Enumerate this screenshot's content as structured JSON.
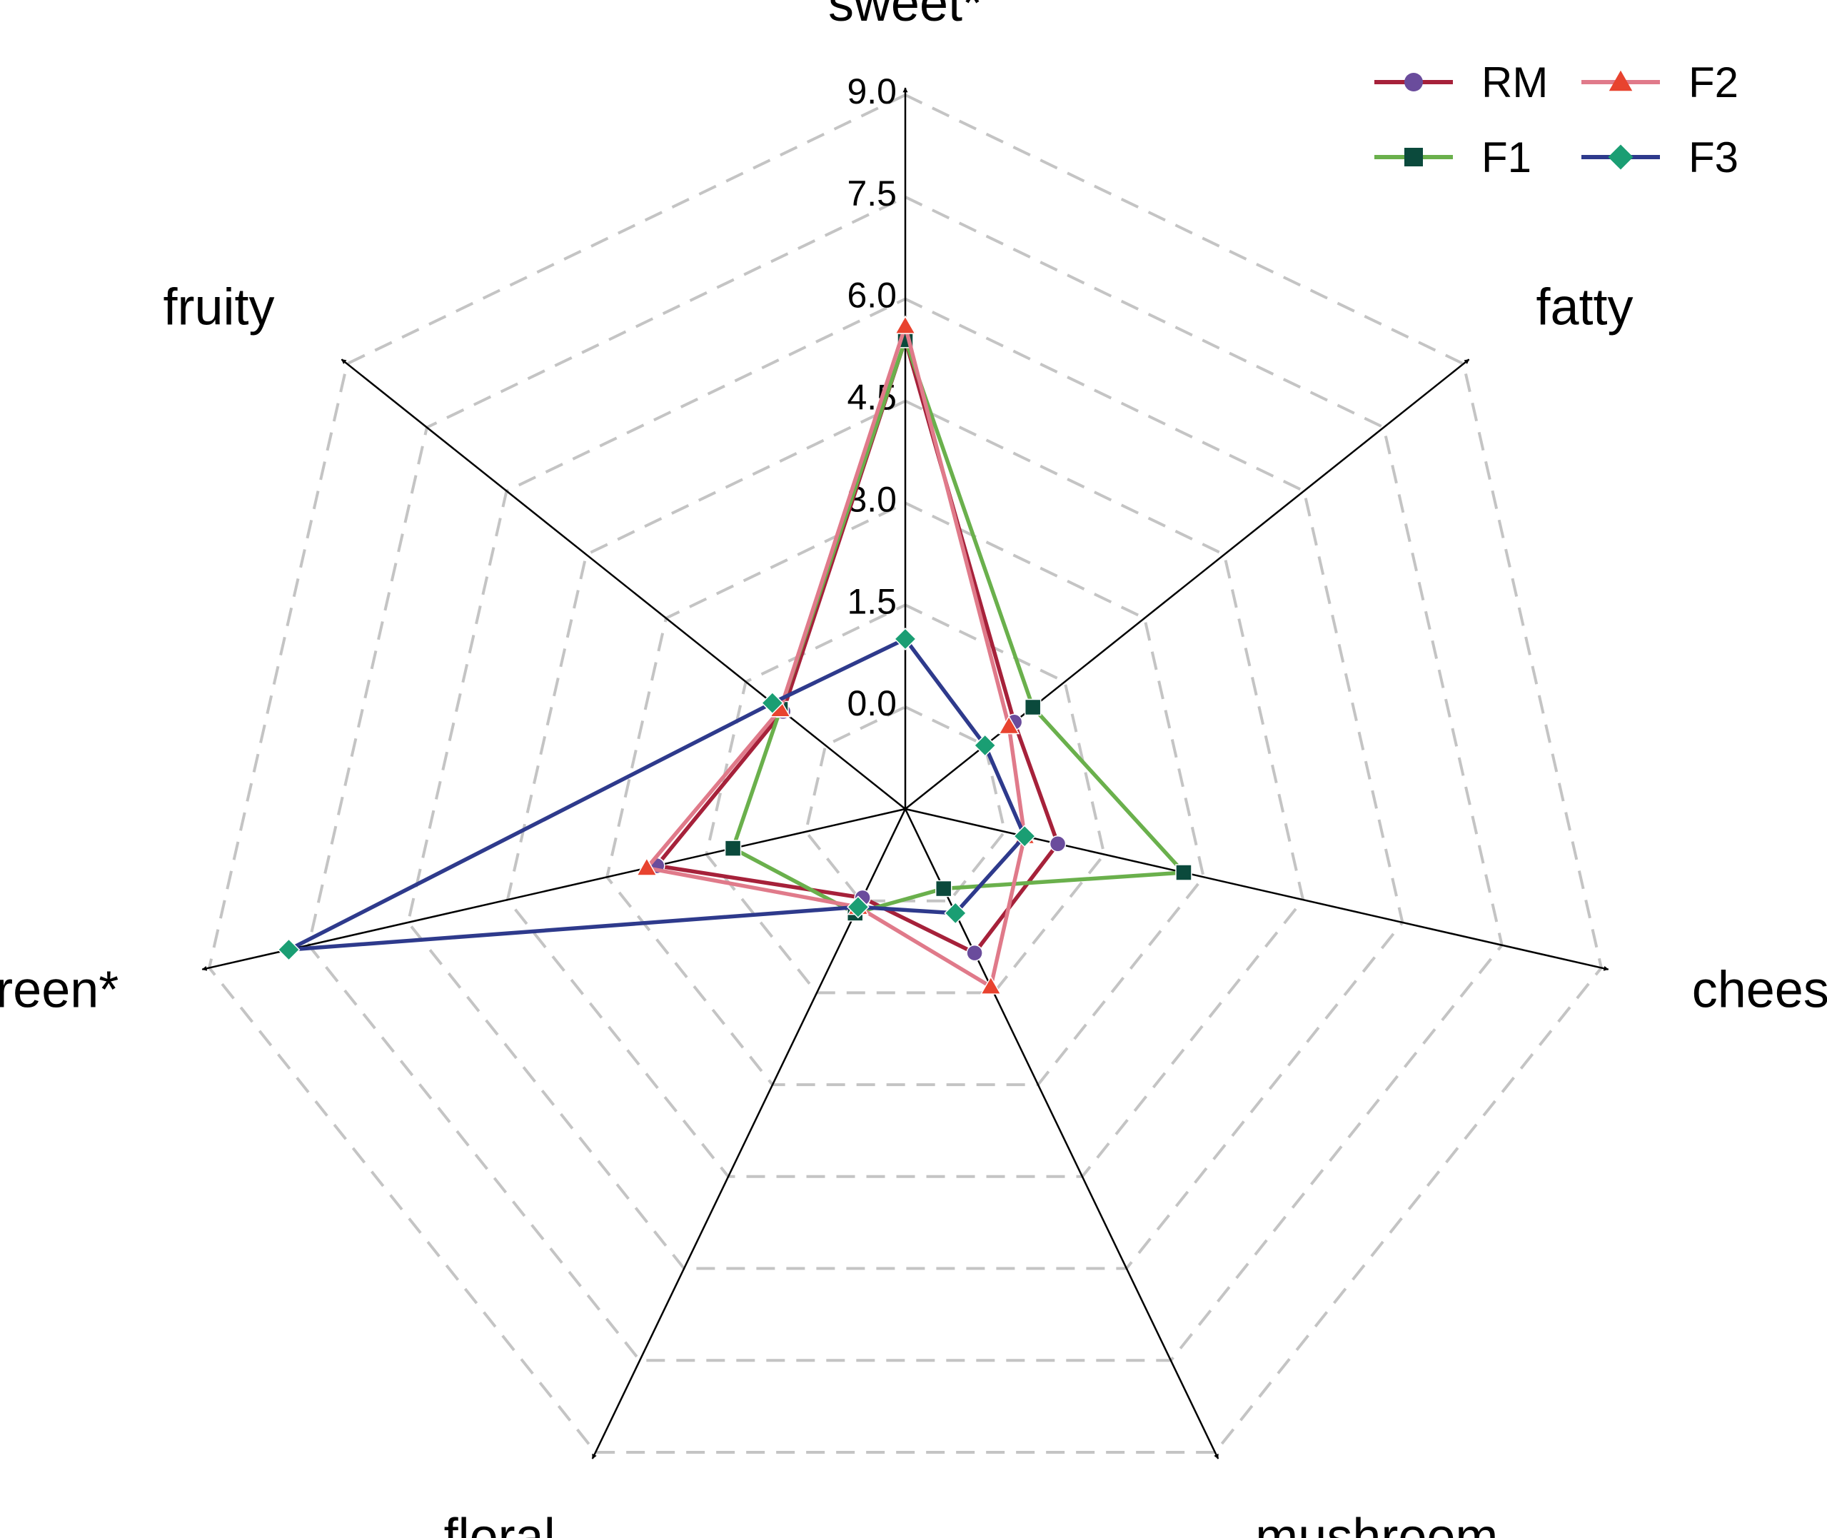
{
  "chart_data": {
    "type": "radar",
    "title": "",
    "axes": [
      "sweet*",
      "fatty",
      "cheese",
      "mushroom",
      "floral",
      "green*",
      "fruity"
    ],
    "r_range": [
      -1.5,
      9.0
    ],
    "ticks": [
      0.0,
      1.5,
      3.0,
      4.5,
      6.0,
      7.5,
      9.0
    ],
    "tick_labels": [
      "0.0",
      "1.5",
      "3.0",
      "4.5",
      "6.0",
      "7.5",
      "9.0"
    ],
    "grid": "dashed",
    "legend_position": "top-right",
    "series": [
      {
        "name": "RM",
        "values": [
          5.4,
          0.55,
          0.8,
          0.85,
          -0.05,
          2.25,
          0.8
        ],
        "line_color": "#A6213A",
        "marker_color": "#6A4C9C",
        "marker": "circle"
      },
      {
        "name": "F1",
        "values": [
          5.4,
          0.9,
          2.7,
          -0.2,
          0.2,
          1.1,
          0.85
        ],
        "line_color": "#6AB04C",
        "marker_color": "#0B4A3C",
        "marker": "square"
      },
      {
        "name": "F2",
        "values": [
          5.6,
          0.45,
          0.3,
          1.4,
          0.1,
          2.4,
          0.85
        ],
        "line_color": "#E07A8A",
        "marker_color": "#E8432F",
        "marker": "triangle"
      },
      {
        "name": "F3",
        "values": [
          1.0,
          0.0,
          0.3,
          0.2,
          0.1,
          7.8,
          1.0
        ],
        "line_color": "#2E3A8C",
        "marker_color": "#1A9E73",
        "marker": "diamond"
      }
    ]
  }
}
